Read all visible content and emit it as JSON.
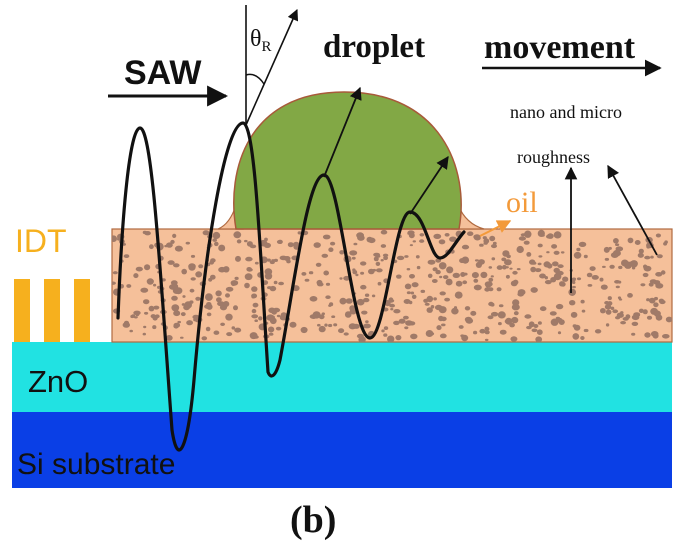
{
  "labels": {
    "saw": "SAW",
    "theta": "θ",
    "theta_sub": "R",
    "droplet": "droplet",
    "movement": "movement",
    "nano_micro": "nano and micro",
    "roughness": "roughness",
    "oil": "oil",
    "idt": "IDT",
    "zno": "ZnO",
    "si": "Si substrate",
    "panel": "(b)"
  },
  "colors": {
    "si_substrate": "#0a3fe6",
    "zno": "#21e2e2",
    "oil_layer": "#f5c09a",
    "oil_border": "#b06a40",
    "particles": "#a07a68",
    "droplet_fill": "#82a845",
    "droplet_border": "#a85a3a",
    "idt": "#f6b01e",
    "oil_label": "#f39a3a",
    "wave": "#111111"
  },
  "icons": {
    "saw_arrow": "right-arrow-icon",
    "movement_arrow": "right-arrow-icon",
    "ray_arrow": "arrow-icon"
  }
}
